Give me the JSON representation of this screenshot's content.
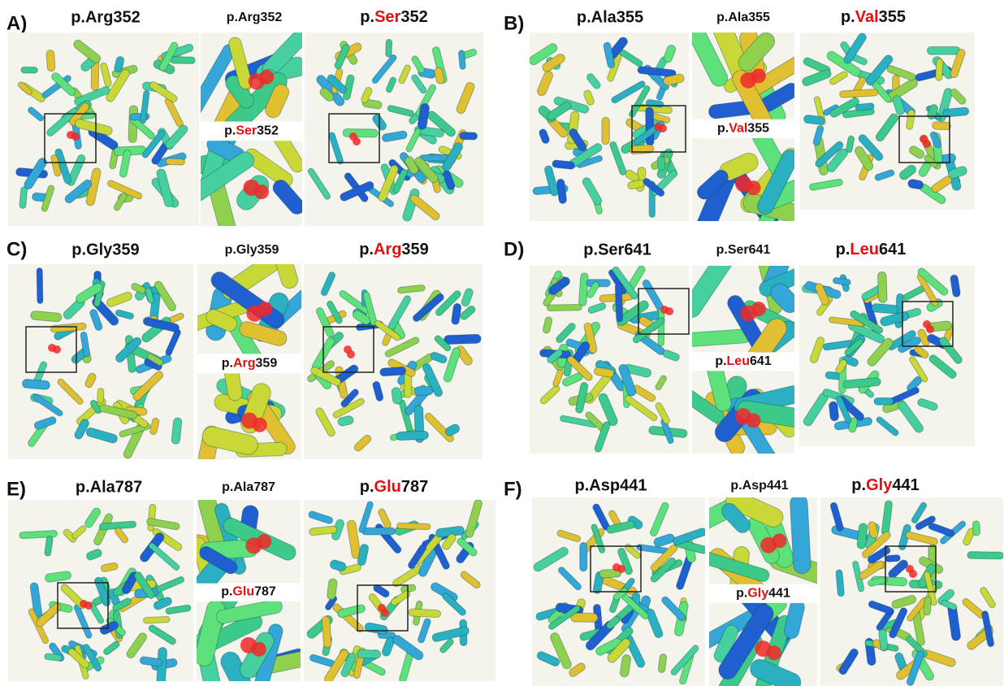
{
  "panels": [
    {
      "label": "A)",
      "wild_title": "p.Arg352",
      "inset_wild_title": "p.Arg352",
      "mutant_title": {
        "prefix": "p.",
        "residue": "Ser",
        "number": "352"
      },
      "inset_mutant_title": {
        "prefix": "p.",
        "residue": "Ser",
        "number": "352"
      }
    },
    {
      "label": "B)",
      "wild_title": "p.Ala355",
      "inset_wild_title": "p.Ala355",
      "mutant_title": {
        "prefix": "p.",
        "residue": "Val",
        "number": "355"
      },
      "inset_mutant_title": {
        "prefix": "p.",
        "residue": "Val",
        "number": "355"
      }
    },
    {
      "label": "C)",
      "wild_title": "p.Gly359",
      "inset_wild_title": "p.Gly359",
      "mutant_title": {
        "prefix": "p.",
        "residue": "Arg",
        "number": "359"
      },
      "inset_mutant_title": {
        "prefix": "p.",
        "residue": "Arg",
        "number": "359"
      }
    },
    {
      "label": "D)",
      "wild_title": "p.Ser641",
      "inset_wild_title": "p.Ser641",
      "mutant_title": {
        "prefix": "p.",
        "residue": "Leu",
        "number": "641"
      },
      "inset_mutant_title": {
        "prefix": "p.",
        "residue": "Leu",
        "number": "641"
      }
    },
    {
      "label": "E)",
      "wild_title": "p.Ala787",
      "inset_wild_title": "p.Ala787",
      "mutant_title": {
        "prefix": "p.",
        "residue": "Glu",
        "number": "787"
      },
      "inset_mutant_title": {
        "prefix": "p.",
        "residue": "Glu",
        "number": "787"
      }
    },
    {
      "label": "F)",
      "wild_title": "p.Asp441",
      "inset_wild_title": "p.Asp441",
      "mutant_title": {
        "prefix": "p.",
        "residue": "Gly",
        "number": "441"
      },
      "inset_mutant_title": {
        "prefix": "p.",
        "residue": "Gly",
        "number": "441"
      }
    }
  ]
}
